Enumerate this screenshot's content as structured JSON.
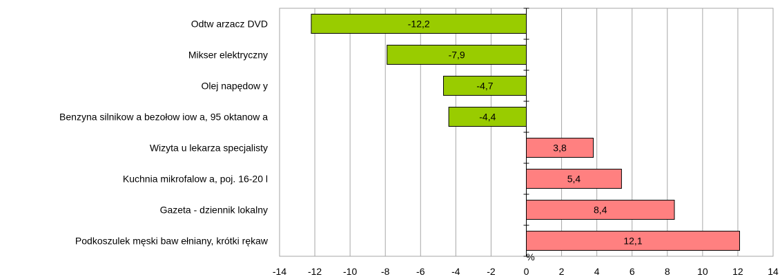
{
  "chart_data": {
    "type": "bar",
    "orientation": "horizontal",
    "categories": [
      "Odtw arzacz DVD",
      "Mikser elektryczny",
      "Olej napędow y",
      "Benzyna silnikow a bezołow iow a, 95 oktanow a",
      "Wizyta u lekarza specjalisty",
      "Kuchnia mikrofalow a, poj. 16-20 l",
      "Gazeta - dziennik lokalny",
      "Podkoszulek męski baw ełniany, krótki rękaw"
    ],
    "values": [
      -12.2,
      -7.9,
      -4.7,
      -4.4,
      3.8,
      5.4,
      8.4,
      12.1
    ],
    "value_labels": [
      "-12,2",
      "-7,9",
      "-4,7",
      "-4,4",
      "3,8",
      "5,4",
      "8,4",
      "12,1"
    ],
    "xlim": [
      -14,
      14
    ],
    "xticks": [
      -14,
      -12,
      -10,
      -8,
      -6,
      -4,
      -2,
      0,
      2,
      4,
      6,
      8,
      10,
      12,
      14
    ],
    "xunit": "%",
    "grid": "vertical",
    "colors": {
      "negative": "#99cc00",
      "positive": "#ff8080",
      "grid": "#a6a6a6",
      "axis": "#000000",
      "border": "#000000"
    }
  }
}
